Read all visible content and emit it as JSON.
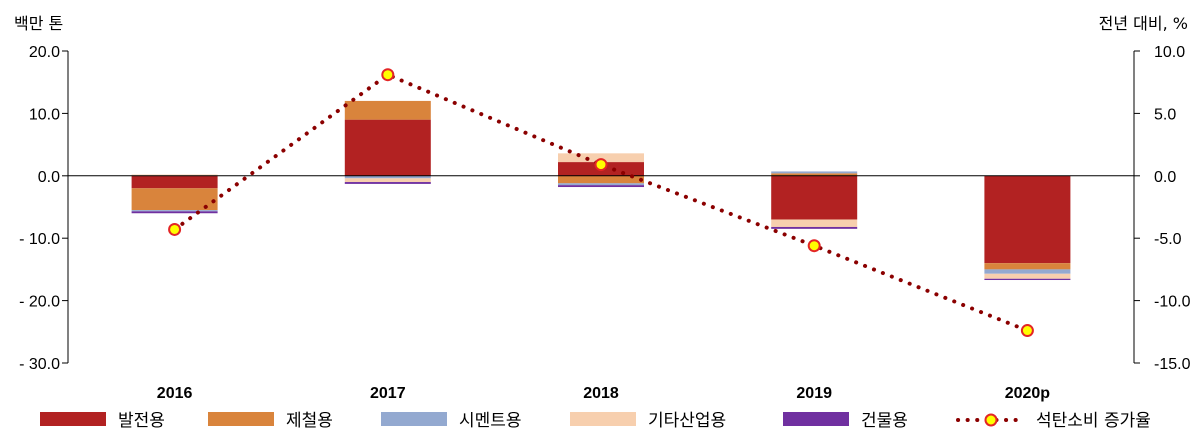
{
  "chart_data": {
    "type": "bar",
    "stacked": true,
    "categories": [
      "2016",
      "2017",
      "2018",
      "2019",
      "2020p"
    ],
    "left_axis": {
      "label": "백만 톤",
      "ylim": [
        -30,
        20
      ],
      "ticks": [
        20,
        10,
        0,
        -10,
        -20,
        -30
      ],
      "tick_labels": [
        "20.0",
        "10.0",
        "0.0",
        "- 10.0",
        "- 20.0",
        "- 30.0"
      ]
    },
    "right_axis": {
      "label": "전년 대비, %",
      "ylim": [
        -15,
        10
      ],
      "ticks": [
        10,
        5,
        0,
        -5,
        -10,
        -15
      ],
      "tick_labels": [
        "10.0",
        "5.0",
        "0.0",
        "-5.0",
        "-10.0",
        "-15.0"
      ]
    },
    "series": [
      {
        "name": "발전용",
        "color": "#b22222",
        "values": [
          -2.0,
          9.0,
          2.2,
          -7.0,
          -14.0
        ]
      },
      {
        "name": "제철용",
        "color": "#d9843c",
        "values": [
          -3.5,
          3.0,
          -1.2,
          0.4,
          -1.0
        ]
      },
      {
        "name": "시멘트용",
        "color": "#93a9d0",
        "values": [
          -0.2,
          -0.4,
          -0.3,
          0.3,
          -0.7
        ]
      },
      {
        "name": "기타산업용",
        "color": "#f7cfae",
        "values": [
          0.2,
          -0.6,
          1.4,
          -1.2,
          -0.8
        ]
      },
      {
        "name": "건물용",
        "color": "#7030a0",
        "values": [
          -0.3,
          -0.3,
          -0.3,
          -0.3,
          -0.2
        ]
      }
    ],
    "line_series": {
      "name": "석탄소비 증가율",
      "axis": "right",
      "line_color": "#8b0000",
      "marker_fill": "#ffff00",
      "marker_edge": "#e32626",
      "values": [
        -4.3,
        8.1,
        0.9,
        -5.6,
        -12.4
      ]
    },
    "legend_placement": "bottom",
    "grid": false
  }
}
